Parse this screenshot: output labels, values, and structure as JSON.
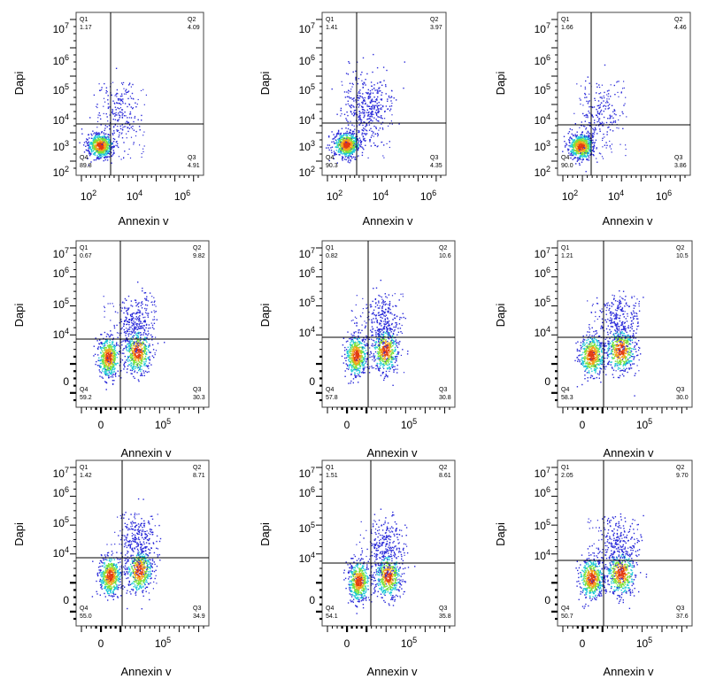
{
  "figure": {
    "colors": {
      "low": "#2a2ad9",
      "mid": "#18c2e8",
      "high": "#e33a10",
      "frame": "#444444",
      "gate": "#000000"
    }
  },
  "chart_data": [
    {
      "type": "scatter",
      "subtype": "flow-cytometry-density",
      "xlabel": "Annexin v",
      "ylabel": "Dapi",
      "xscale": "log",
      "yscale": "log",
      "xticks": [
        "10^2",
        "10^4",
        "10^6"
      ],
      "yticks": [
        "10^2",
        "10^3",
        "10^4",
        "10^5",
        "10^6",
        "10^7"
      ],
      "quadrants": {
        "Q1": "1.17",
        "Q2": "4.09",
        "Q3": "4.91",
        "Q4": "89.8"
      }
    },
    {
      "type": "scatter",
      "subtype": "flow-cytometry-density",
      "xlabel": "Annexin v",
      "ylabel": "Dapi",
      "xscale": "log",
      "yscale": "log",
      "xticks": [
        "10^2",
        "10^4",
        "10^6"
      ],
      "yticks": [
        "10^2",
        "10^3",
        "10^4",
        "10^5",
        "10^6",
        "10^7"
      ],
      "quadrants": {
        "Q1": "1.41",
        "Q2": "3.97",
        "Q3": "4.35",
        "Q4": "90.3"
      }
    },
    {
      "type": "scatter",
      "subtype": "flow-cytometry-density",
      "xlabel": "Annexin v",
      "ylabel": "Dapi",
      "xscale": "log",
      "yscale": "log",
      "xticks": [
        "10^2",
        "10^4",
        "10^6"
      ],
      "yticks": [
        "10^2",
        "10^3",
        "10^4",
        "10^5",
        "10^6",
        "10^7"
      ],
      "quadrants": {
        "Q1": "1.66",
        "Q2": "4.46",
        "Q3": "3.86",
        "Q4": "90.0"
      }
    },
    {
      "type": "scatter",
      "subtype": "flow-cytometry-density",
      "xlabel": "Annexin v",
      "ylabel": "Dapi",
      "xscale": "biexponential",
      "yscale": "biexponential",
      "xticks": [
        "0",
        "10^5"
      ],
      "yticks": [
        "0",
        "10^4",
        "10^5",
        "10^6",
        "10^7"
      ],
      "quadrants": {
        "Q1": "0.67",
        "Q2": "9.82",
        "Q3": "30.3",
        "Q4": "59.2"
      }
    },
    {
      "type": "scatter",
      "subtype": "flow-cytometry-density",
      "xlabel": "Annexin v",
      "ylabel": "Dapi",
      "xscale": "biexponential",
      "yscale": "biexponential",
      "xticks": [
        "0",
        "10^5"
      ],
      "yticks": [
        "0",
        "10^4",
        "10^5",
        "10^6",
        "10^7"
      ],
      "quadrants": {
        "Q1": "0.82",
        "Q2": "10.6",
        "Q3": "30.8",
        "Q4": "57.8"
      }
    },
    {
      "type": "scatter",
      "subtype": "flow-cytometry-density",
      "xlabel": "Annexin v",
      "ylabel": "Dapi",
      "xscale": "biexponential",
      "yscale": "biexponential",
      "xticks": [
        "0",
        "10^5"
      ],
      "yticks": [
        "0",
        "10^4",
        "10^5",
        "10^6",
        "10^7"
      ],
      "quadrants": {
        "Q1": "1.21",
        "Q2": "10.5",
        "Q3": "30.0",
        "Q4": "58.3"
      }
    },
    {
      "type": "scatter",
      "subtype": "flow-cytometry-density",
      "xlabel": "Annexin v",
      "ylabel": "Dapi",
      "xscale": "biexponential",
      "yscale": "biexponential",
      "xticks": [
        "0",
        "10^5"
      ],
      "yticks": [
        "0",
        "10^4",
        "10^5",
        "10^6",
        "10^7"
      ],
      "quadrants": {
        "Q1": "1.42",
        "Q2": "8.71",
        "Q3": "34.9",
        "Q4": "55.0"
      }
    },
    {
      "type": "scatter",
      "subtype": "flow-cytometry-density",
      "xlabel": "Annexin v",
      "ylabel": "Dapi",
      "xscale": "biexponential",
      "yscale": "biexponential",
      "xticks": [
        "0",
        "10^5"
      ],
      "yticks": [
        "0",
        "10^4",
        "10^5",
        "10^6",
        "10^7"
      ],
      "quadrants": {
        "Q1": "1.51",
        "Q2": "8.61",
        "Q3": "35.8",
        "Q4": "54.1"
      }
    },
    {
      "type": "scatter",
      "subtype": "flow-cytometry-density",
      "xlabel": "Annexin v",
      "ylabel": "Dapi",
      "xscale": "biexponential",
      "yscale": "biexponential",
      "xticks": [
        "0",
        "10^5"
      ],
      "yticks": [
        "0",
        "10^4",
        "10^5",
        "10^6",
        "10^7"
      ],
      "quadrants": {
        "Q1": "2.05",
        "Q2": "9.70",
        "Q3": "37.6",
        "Q4": "50.7"
      }
    }
  ]
}
